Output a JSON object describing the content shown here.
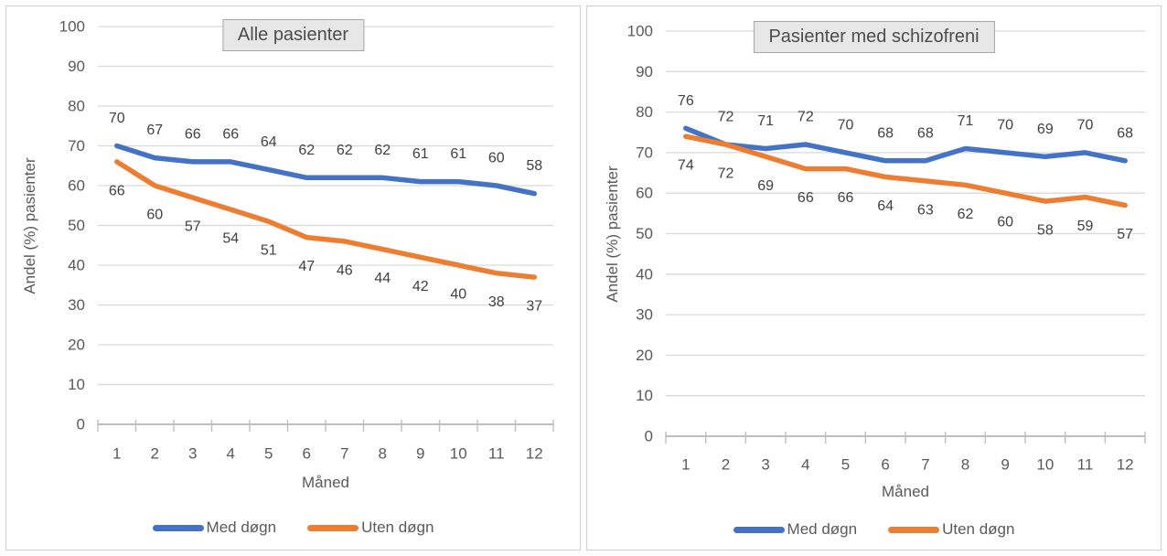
{
  "page": {
    "background": "#FFFFFF"
  },
  "colors": {
    "series_blue": "#4472C4",
    "series_orange": "#ED7D31",
    "axis_text": "#595959",
    "data_label_text": "#404040",
    "gridline": "#D9D9D9",
    "axis_line": "#BFBFBF",
    "title_box_bg": "#E7E7E7",
    "title_box_border": "#A6A6A6",
    "panel_border": "#D0CECE"
  },
  "chart_data": [
    {
      "type": "line",
      "title": "Alle pasienter",
      "xlabel": "Måned",
      "ylabel": "Andel (%) pasienter",
      "ylim": [
        0,
        100
      ],
      "yticks": [
        0,
        10,
        20,
        30,
        40,
        50,
        60,
        70,
        80,
        90,
        100
      ],
      "grid": true,
      "legend_position": "bottom",
      "categories": [
        "1",
        "2",
        "3",
        "4",
        "5",
        "6",
        "7",
        "8",
        "9",
        "10",
        "11",
        "12"
      ],
      "series": [
        {
          "name": "Med døgn",
          "color": "#4472C4",
          "data_label_position": "above",
          "values": [
            70,
            67,
            66,
            66,
            64,
            62,
            62,
            62,
            61,
            61,
            60,
            58
          ]
        },
        {
          "name": "Uten døgn",
          "color": "#ED7D31",
          "data_label_position": "below",
          "values": [
            66,
            60,
            57,
            54,
            51,
            47,
            46,
            44,
            42,
            40,
            38,
            37
          ]
        }
      ]
    },
    {
      "type": "line",
      "title": "Pasienter med schizofreni",
      "xlabel": "Måned",
      "ylabel": "Andel (%) pasienter",
      "ylim": [
        0,
        100
      ],
      "yticks": [
        0,
        10,
        20,
        30,
        40,
        50,
        60,
        70,
        80,
        90,
        100
      ],
      "grid": true,
      "legend_position": "bottom",
      "categories": [
        "1",
        "2",
        "3",
        "4",
        "5",
        "6",
        "7",
        "8",
        "9",
        "10",
        "11",
        "12"
      ],
      "series": [
        {
          "name": "Med døgn",
          "color": "#4472C4",
          "data_label_position": "above",
          "values": [
            76,
            72,
            71,
            72,
            70,
            68,
            68,
            71,
            70,
            69,
            70,
            68
          ]
        },
        {
          "name": "Uten døgn",
          "color": "#ED7D31",
          "data_label_position": "below",
          "values": [
            74,
            72,
            69,
            66,
            66,
            64,
            63,
            62,
            60,
            58,
            59,
            57
          ]
        }
      ]
    }
  ]
}
